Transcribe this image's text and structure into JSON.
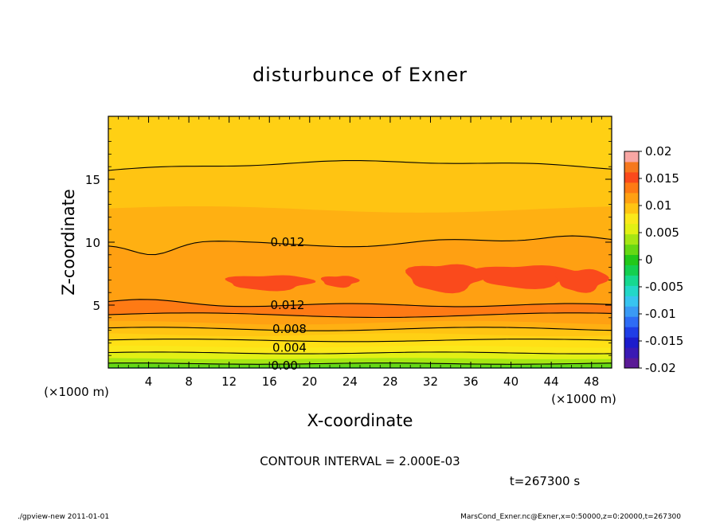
{
  "chart_data": {
    "type": "heatmap",
    "title": "disturbunce of Exner",
    "xlabel": "X-coordinate",
    "ylabel": "Z-coordinate",
    "x_unit": "(×1000 m)",
    "y_unit": "(×1000 m)",
    "xlim": [
      0,
      50
    ],
    "ylim": [
      0,
      20
    ],
    "x_ticks": [
      4,
      8,
      12,
      16,
      20,
      24,
      28,
      32,
      36,
      40,
      44,
      48
    ],
    "y_ticks": [
      5,
      10,
      15
    ],
    "colorbar": {
      "ticks": [
        "0.02",
        "0.015",
        "0.01",
        "0.005",
        "0",
        "-0.005",
        "-0.01",
        "-0.015",
        "-0.02"
      ],
      "range": [
        -0.02,
        0.02
      ],
      "levels": [
        -0.02,
        -0.018,
        -0.016,
        -0.014,
        -0.012,
        -0.01,
        -0.008,
        -0.006,
        -0.004,
        -0.002,
        0.0,
        0.002,
        0.004,
        0.006,
        0.008,
        0.01,
        0.012,
        0.014,
        0.016,
        0.018,
        0.02
      ],
      "colors": [
        "#5a1a96",
        "#3a1ab4",
        "#1c1ccc",
        "#1f3ee6",
        "#2e6cf5",
        "#3a9af5",
        "#38c4f0",
        "#23d7c8",
        "#16d890",
        "#14cf50",
        "#22c81a",
        "#66d814",
        "#a6e614",
        "#e2f014",
        "#fbe81a",
        "#ffc412",
        "#ffa012",
        "#fe7a14",
        "#fa4a1c",
        "#f6781e",
        "#f9a7a4"
      ]
    },
    "contour_labels": [
      {
        "text": "0.012",
        "x": 17.8,
        "y": 10.0
      },
      {
        "text": "0.012",
        "x": 17.8,
        "y": 5.0
      },
      {
        "text": "0.008",
        "x": 18.0,
        "y": 3.1
      },
      {
        "text": "0.004",
        "x": 18.0,
        "y": 1.6
      },
      {
        "text": "0.00",
        "x": 17.5,
        "y": 0.2
      }
    ],
    "contour_interval": "CONTOUR INTERVAL = 2.000E-03",
    "time": "t=267300 s"
  },
  "footer": {
    "left": "./gpview-new  2011-01-01",
    "right": "MarsCond_Exner.nc@Exner,x=0:50000,z=0:20000,t=267300"
  }
}
